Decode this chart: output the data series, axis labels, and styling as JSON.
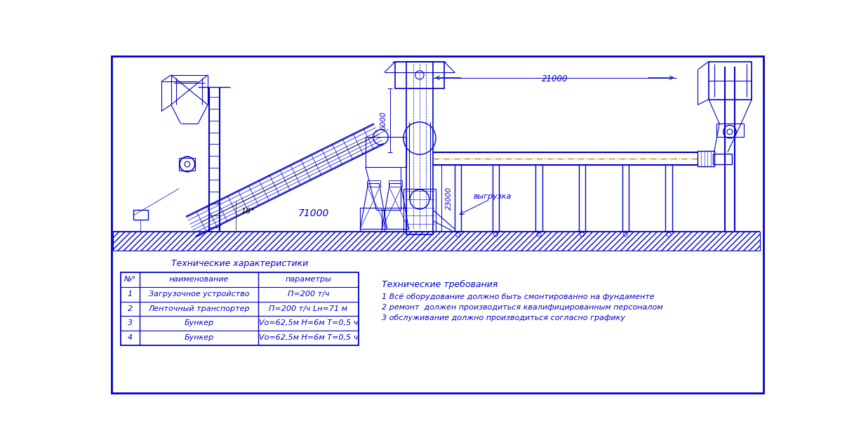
{
  "bg": "#ffffff",
  "dc": "#0000cc",
  "orange": "#cc8800",
  "black": "#000000",
  "tech_char_title": "Технические характеристики",
  "col0_hdr": "№°",
  "col1_hdr": "наименование",
  "col2_hdr": "параметры",
  "rows": [
    [
      "1",
      "Загрузочное устройство",
      "П=200 т/ч"
    ],
    [
      "2",
      "Ленточный транспортер",
      "П=200 т/ч Lн=71 м"
    ],
    [
      "3",
      "Бункер",
      "Vо=62,5м H=6м T=0,5 ч"
    ],
    [
      "4",
      "Бункер",
      "Vо=62,5м H=6м T=0,5 ч"
    ]
  ],
  "tech_req_title": "Технические требования",
  "tech_req": [
    "1 Всё оборудование должно быть смонтированно на фундаменте",
    "2 ремонт  должен производиться квалифицированным персоналом",
    "3 обслуживание должно производиться согласно графику"
  ],
  "dim_71000": "71000",
  "dim_6000": "6000",
  "dim_23000": "23000",
  "dim_21000": "21000",
  "dim_angle": "18°",
  "label_vygruzka": "выгрузка"
}
